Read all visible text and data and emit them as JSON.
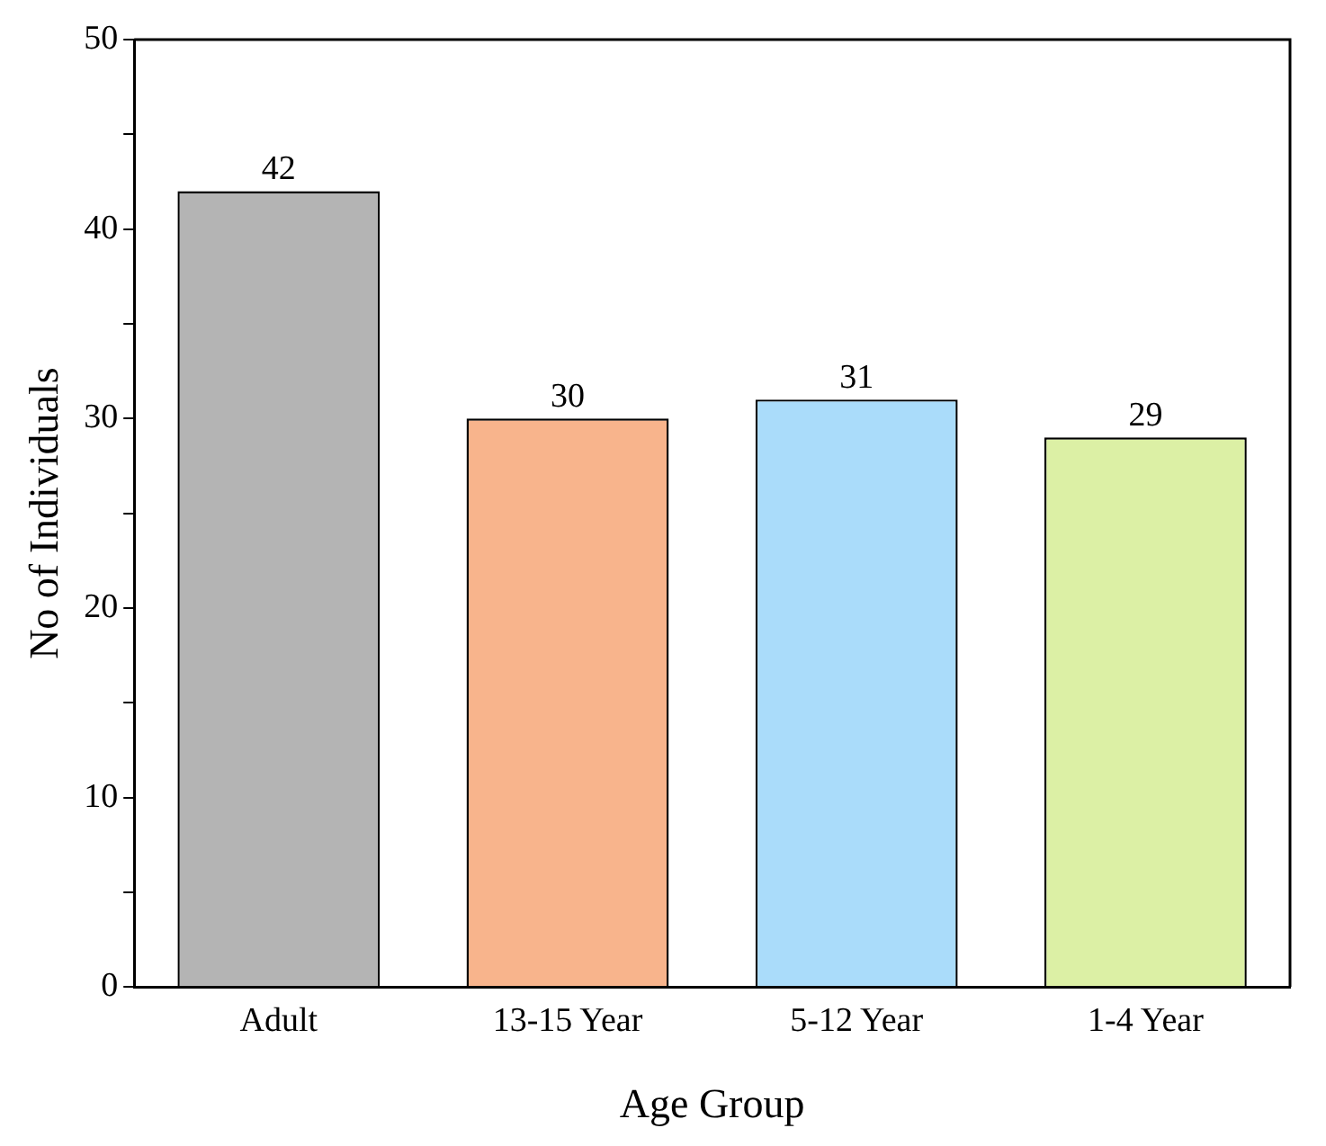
{
  "chart_data": {
    "type": "bar",
    "xlabel": "Age Group",
    "ylabel": "No of Individuals",
    "categories": [
      "Adult",
      "13-15 Year",
      "5-12 Year",
      "1-4 Year"
    ],
    "values": [
      42,
      30,
      31,
      29
    ],
    "colors": [
      "#b4b4b4",
      "#f8b48c",
      "#aadcfa",
      "#dcf0a5"
    ],
    "ylim": [
      0,
      50
    ],
    "yticks": [
      0,
      {
        "value": 5,
        "label": null
      },
      10,
      {
        "value": 15,
        "label": null
      },
      20,
      {
        "value": 25,
        "label": null
      },
      30,
      {
        "value": 35,
        "label": null
      },
      40,
      {
        "value": 45,
        "label": null
      },
      50
    ],
    "grid": false,
    "legend": false,
    "data_labels": true
  }
}
